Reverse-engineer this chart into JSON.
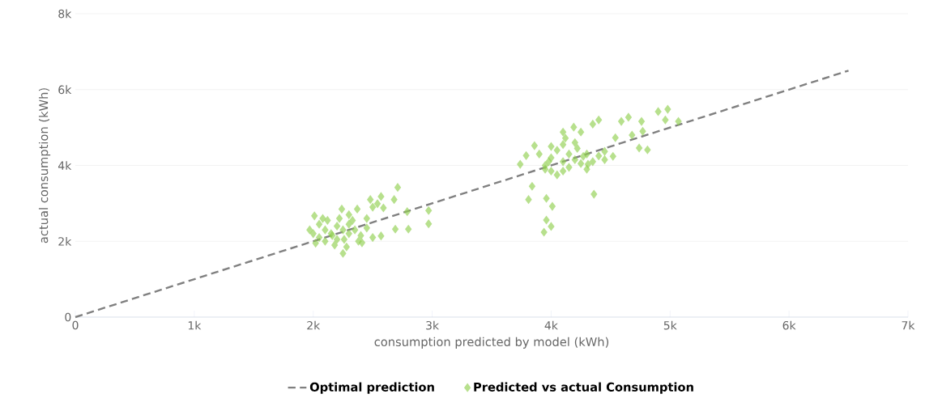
{
  "chart_data": {
    "type": "scatter",
    "xlabel": "consumption predicted by model (kWh)",
    "ylabel": "actual consumption (kWh)",
    "xlim": [
      0,
      7000
    ],
    "ylim": [
      0,
      8000
    ],
    "xticks": [
      0,
      {
        "value": 1000,
        "label": "1k"
      },
      {
        "value": 2000,
        "label": "2k"
      },
      {
        "value": 3000,
        "label": "3k"
      },
      {
        "value": 4000,
        "label": "4k"
      },
      {
        "value": 5000,
        "label": "5k"
      },
      {
        "value": 6000,
        "label": "6k"
      },
      {
        "value": 7000,
        "label": "7k"
      }
    ],
    "yticks": [
      0,
      {
        "value": 2000,
        "label": "2k"
      },
      {
        "value": 4000,
        "label": "4k"
      },
      {
        "value": 6000,
        "label": "6k"
      },
      {
        "value": 8000,
        "label": "8k"
      }
    ],
    "grid": "y",
    "legend": "bottom",
    "series": [
      {
        "name": "Optimal prediction",
        "type": "line",
        "color": "#808080",
        "line_style": "dashed",
        "marker": "none",
        "x": [
          0,
          6500
        ],
        "values": [
          0,
          6500
        ]
      },
      {
        "name": "Predicted vs actual Consumption",
        "color": "#90d050",
        "marker": "diamond",
        "x": [
          2710,
          2480,
          2570,
          2680,
          2540,
          2590,
          2790,
          2970,
          2970,
          2800,
          2690,
          2010,
          2240,
          2370,
          2250,
          2410,
          2570,
          2000,
          2050,
          2100,
          2150,
          2200,
          2250,
          2300,
          2100,
          2200,
          2300,
          2350,
          2400,
          1970,
          2050,
          2120,
          2180,
          2280,
          2220,
          2330,
          2450,
          2500,
          2020,
          2160,
          2260,
          2380,
          2080,
          2300,
          2500,
          2450,
          4900,
          4980,
          4960,
          5070,
          4760,
          4770,
          4740,
          4810,
          4650,
          4590,
          4400,
          4350,
          4190,
          4100,
          4250,
          4360,
          3810,
          3960,
          4010,
          3960,
          4000,
          3940,
          3840,
          3740,
          3790,
          3860,
          4540,
          4450,
          4520,
          4680,
          4270,
          4310,
          3950,
          4000,
          4050,
          4000,
          4100,
          4150,
          4200,
          4250,
          4300,
          4100,
          4050,
          3900,
          3950,
          4150,
          4200,
          4350,
          4400,
          4000,
          4100,
          3980,
          4300,
          4450,
          4120,
          4220
        ],
        "values": [
          3420,
          3100,
          3180,
          3100,
          2990,
          2880,
          2780,
          2810,
          2460,
          2320,
          2320,
          2670,
          2850,
          2850,
          1680,
          1960,
          2140,
          2200,
          2100,
          2300,
          2200,
          2400,
          2300,
          2200,
          2000,
          2050,
          2450,
          2300,
          2150,
          2300,
          2450,
          2550,
          1900,
          1850,
          2600,
          2550,
          2350,
          2100,
          1950,
          2150,
          2050,
          2000,
          2600,
          2700,
          2900,
          2600,
          5420,
          5480,
          5200,
          5160,
          5160,
          4900,
          4460,
          4410,
          5270,
          5160,
          5200,
          5090,
          5010,
          4880,
          4880,
          3240,
          3100,
          3130,
          2920,
          2560,
          2390,
          2240,
          3450,
          4030,
          4260,
          4520,
          4730,
          4370,
          4240,
          4800,
          4240,
          4030,
          4000,
          4200,
          4400,
          3850,
          4100,
          3950,
          4150,
          4050,
          4300,
          4550,
          3750,
          4300,
          3900,
          4300,
          4600,
          4100,
          4250,
          4500,
          3850,
          4100,
          3900,
          4150,
          4720,
          4450
        ]
      }
    ]
  }
}
